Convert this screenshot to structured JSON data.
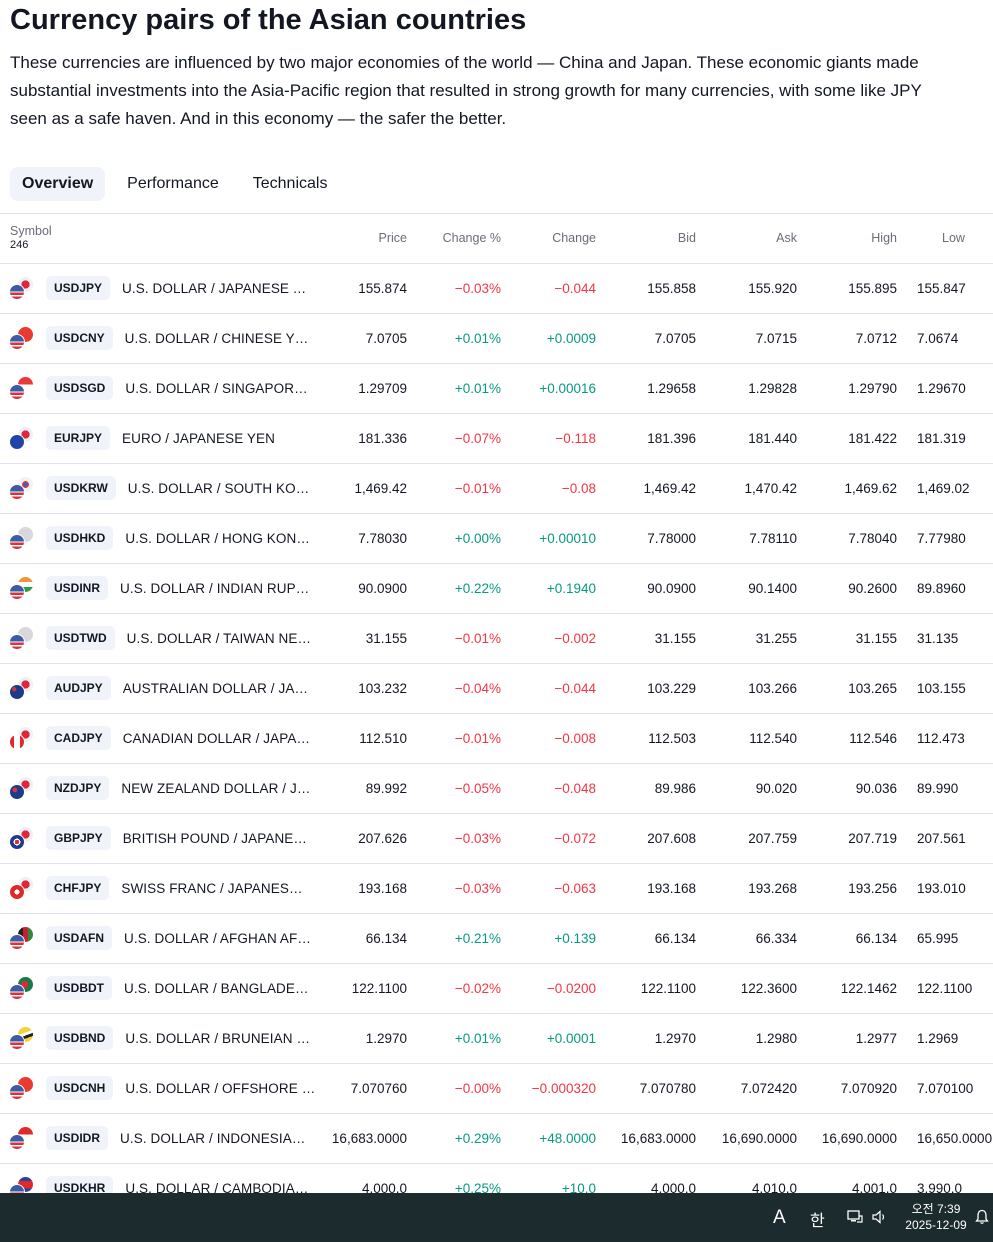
{
  "page": {
    "title": "Currency pairs of the Asian countries",
    "intro": "These currencies are influenced by two major economies of the world — China and Japan. These economic giants made substantial investments into the Asia-Pacific region that resulted in strong growth for many currencies, with some like JPY seen as a safe haven. And in this economy — the safer the better."
  },
  "tabs": [
    {
      "label": "Overview",
      "active": true
    },
    {
      "label": "Performance",
      "active": false
    },
    {
      "label": "Technicals",
      "active": false
    }
  ],
  "table": {
    "headers": {
      "symbol": "Symbol",
      "count": "246",
      "price": "Price",
      "change_pct": "Change %",
      "change": "Change",
      "bid": "Bid",
      "ask": "Ask",
      "high": "High",
      "low": "Low"
    },
    "rows": [
      {
        "ticker": "USDJPY",
        "desc": "U.S. DOLLAR / JAPANESE YEN",
        "price": "155.874",
        "chp": "−0.03%",
        "ch": "−0.044",
        "dir": "neg",
        "bid": "155.858",
        "ask": "155.920",
        "high": "155.895",
        "low": "155.847",
        "flags": [
          "us",
          "jp"
        ]
      },
      {
        "ticker": "USDCNY",
        "desc": "U.S. DOLLAR / CHINESE YUAN",
        "price": "7.0705",
        "chp": "+0.01%",
        "ch": "+0.0009",
        "dir": "pos",
        "bid": "7.0705",
        "ask": "7.0715",
        "high": "7.0712",
        "low": "7.0674",
        "flags": [
          "us",
          "cn"
        ]
      },
      {
        "ticker": "USDSGD",
        "desc": "U.S. DOLLAR / SINGAPORE DOLLAR",
        "price": "1.29709",
        "chp": "+0.01%",
        "ch": "+0.00016",
        "dir": "pos",
        "bid": "1.29658",
        "ask": "1.29828",
        "high": "1.29790",
        "low": "1.29670",
        "flags": [
          "us",
          "sg"
        ]
      },
      {
        "ticker": "EURJPY",
        "desc": "EURO / JAPANESE YEN",
        "price": "181.336",
        "chp": "−0.07%",
        "ch": "−0.118",
        "dir": "neg",
        "bid": "181.396",
        "ask": "181.440",
        "high": "181.422",
        "low": "181.319",
        "flags": [
          "eu",
          "jp"
        ]
      },
      {
        "ticker": "USDKRW",
        "desc": "U.S. DOLLAR / SOUTH KOREAN WON",
        "price": "1,469.42",
        "chp": "−0.01%",
        "ch": "−0.08",
        "dir": "neg",
        "bid": "1,469.42",
        "ask": "1,470.42",
        "high": "1,469.62",
        "low": "1,469.02",
        "flags": [
          "us",
          "kr"
        ]
      },
      {
        "ticker": "USDHKD",
        "desc": "U.S. DOLLAR / HONG KONG DOLLAR",
        "price": "7.78030",
        "chp": "+0.00%",
        "ch": "+0.00010",
        "dir": "pos",
        "bid": "7.78000",
        "ask": "7.78110",
        "high": "7.78040",
        "low": "7.77980",
        "flags": [
          "us",
          "hk"
        ]
      },
      {
        "ticker": "USDINR",
        "desc": "U.S. DOLLAR / INDIAN RUPEE",
        "price": "90.0900",
        "chp": "+0.22%",
        "ch": "+0.1940",
        "dir": "pos",
        "bid": "90.0900",
        "ask": "90.1400",
        "high": "90.2600",
        "low": "89.8960",
        "flags": [
          "us",
          "in"
        ]
      },
      {
        "ticker": "USDTWD",
        "desc": "U.S. DOLLAR / TAIWAN NEW DOLLAR",
        "price": "31.155",
        "chp": "−0.01%",
        "ch": "−0.002",
        "dir": "neg",
        "bid": "31.155",
        "ask": "31.255",
        "high": "31.155",
        "low": "31.135",
        "flags": [
          "us",
          "tw"
        ]
      },
      {
        "ticker": "AUDJPY",
        "desc": "AUSTRALIAN DOLLAR / JAPANESE YEN",
        "price": "103.232",
        "chp": "−0.04%",
        "ch": "−0.044",
        "dir": "neg",
        "bid": "103.229",
        "ask": "103.266",
        "high": "103.265",
        "low": "103.155",
        "flags": [
          "au",
          "jp"
        ]
      },
      {
        "ticker": "CADJPY",
        "desc": "CANADIAN DOLLAR / JAPANESE YEN",
        "price": "112.510",
        "chp": "−0.01%",
        "ch": "−0.008",
        "dir": "neg",
        "bid": "112.503",
        "ask": "112.540",
        "high": "112.546",
        "low": "112.473",
        "flags": [
          "ca",
          "jp"
        ]
      },
      {
        "ticker": "NZDJPY",
        "desc": "NEW ZEALAND DOLLAR / JAPANESE YEN",
        "price": "89.992",
        "chp": "−0.05%",
        "ch": "−0.048",
        "dir": "neg",
        "bid": "89.986",
        "ask": "90.020",
        "high": "90.036",
        "low": "89.990",
        "flags": [
          "nz",
          "jp"
        ]
      },
      {
        "ticker": "GBPJPY",
        "desc": "BRITISH POUND / JAPANESE YEN",
        "price": "207.626",
        "chp": "−0.03%",
        "ch": "−0.072",
        "dir": "neg",
        "bid": "207.608",
        "ask": "207.759",
        "high": "207.719",
        "low": "207.561",
        "flags": [
          "gb",
          "jp"
        ]
      },
      {
        "ticker": "CHFJPY",
        "desc": "SWISS FRANC / JAPANESE YEN",
        "price": "193.168",
        "chp": "−0.03%",
        "ch": "−0.063",
        "dir": "neg",
        "bid": "193.168",
        "ask": "193.268",
        "high": "193.256",
        "low": "193.010",
        "flags": [
          "ch",
          "jp"
        ]
      },
      {
        "ticker": "USDAFN",
        "desc": "U.S. DOLLAR / AFGHAN AFGHANI",
        "price": "66.134",
        "chp": "+0.21%",
        "ch": "+0.139",
        "dir": "pos",
        "bid": "66.134",
        "ask": "66.334",
        "high": "66.134",
        "low": "65.995",
        "flags": [
          "us",
          "af"
        ]
      },
      {
        "ticker": "USDBDT",
        "desc": "U.S. DOLLAR / BANGLADESHI TAKA",
        "price": "122.1100",
        "chp": "−0.02%",
        "ch": "−0.0200",
        "dir": "neg",
        "bid": "122.1100",
        "ask": "122.3600",
        "high": "122.1462",
        "low": "122.1100",
        "flags": [
          "us",
          "bd"
        ]
      },
      {
        "ticker": "USDBND",
        "desc": "U.S. DOLLAR / BRUNEIAN DOLLAR",
        "price": "1.2970",
        "chp": "+0.01%",
        "ch": "+0.0001",
        "dir": "pos",
        "bid": "1.2970",
        "ask": "1.2980",
        "high": "1.2977",
        "low": "1.2969",
        "flags": [
          "us",
          "bn"
        ]
      },
      {
        "ticker": "USDCNH",
        "desc": "U.S. DOLLAR / OFFSHORE CHINESE YUAN",
        "price": "7.070760",
        "chp": "−0.00%",
        "ch": "−0.000320",
        "dir": "neg",
        "bid": "7.070780",
        "ask": "7.072420",
        "high": "7.070920",
        "low": "7.070100",
        "flags": [
          "us",
          "cn"
        ]
      },
      {
        "ticker": "USDIDR",
        "desc": "U.S. DOLLAR / INDONESIAN RUPIAH",
        "price": "16,683.0000",
        "chp": "+0.29%",
        "ch": "+48.0000",
        "dir": "pos",
        "bid": "16,683.0000",
        "ask": "16,690.0000",
        "high": "16,690.0000",
        "low": "16,650.0000",
        "flags": [
          "us",
          "id"
        ]
      },
      {
        "ticker": "USDKHR",
        "desc": "U.S. DOLLAR / CAMBODIAN RIEL",
        "price": "4,000.0",
        "chp": "+0.25%",
        "ch": "+10.0",
        "dir": "pos",
        "bid": "4,000.0",
        "ask": "4,010.0",
        "high": "4,001.0",
        "low": "3,990.0",
        "flags": [
          "us",
          "kh"
        ]
      }
    ]
  },
  "taskbar": {
    "ime_mode": "A",
    "ime_lang": "한",
    "time": "오전 7:39",
    "date": "2025-12-09"
  },
  "colors": {
    "positive": "#089981",
    "negative": "#f23645",
    "taskbar": "#1c2b2d"
  },
  "flag_colors": {
    "us": "linear-gradient(180deg,#3c5aa6 0 45%,#ffffff 45% 55%,#d9323f 55% 70%,#ffffff 70% 82%,#d9323f 82%)",
    "jp": "radial-gradient(circle at 50% 50%,#e0263a 0 38%,#eef0f3 40%)",
    "cn": "#e83a2f",
    "sg": "linear-gradient(180deg,#e83a3a 0 50%,#ffffff 50%)",
    "eu": "radial-gradient(circle,#1f45a8 0 60%,#1f45a8 100%)",
    "kr": "radial-gradient(circle,#3a5fbf 0 20%,#e03a3a 21% 32%,#f2f2f2 33%)",
    "hk": "#d8d8dc",
    "in": "linear-gradient(180deg,#f5913a 0 33%,#ffffff 33% 66%,#2f9c45 66%)",
    "tw": "#d8d8dc",
    "au": "radial-gradient(circle at 30% 30%,#d9323f 0 15%,#1e3a8a 16%)",
    "ca": "linear-gradient(90deg,#e02a2a 0 28%,#ffffff 28% 72%,#e02a2a 72%)",
    "nz": "radial-gradient(circle at 35% 35%,#d9323f 0 18%,#1e3a8a 19%)",
    "gb": "radial-gradient(circle,#d9323f 0 22%,#ffffff 23% 34%,#1e3a8a 35%)",
    "ch": "radial-gradient(circle,#ffffff 0 25%,#e02a2a 26%)",
    "af": "linear-gradient(90deg,#222 0 33%,#c8202f 33% 66%,#2c8a3e 66%)",
    "bd": "radial-gradient(circle at 45% 50%,#e0263a 0 30%,#1a7a45 32%)",
    "bn": "linear-gradient(160deg,#f2d43a 0 40%,#ffffff 40% 55%,#222 55% 70%,#f2d43a 70%)",
    "id": "linear-gradient(180deg,#e02a2a 0 50%,#ffffff 50%)",
    "kh": "linear-gradient(180deg,#2a3fa8 0 25%,#e02a2a 25% 75%,#2a3fa8 75%)"
  }
}
